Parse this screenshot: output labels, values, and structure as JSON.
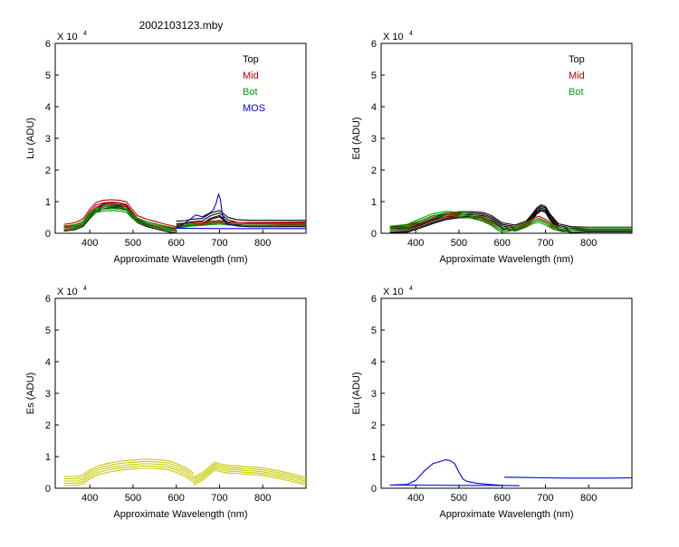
{
  "figure": {
    "title": "2002103123.mby"
  },
  "chart_data": [
    {
      "type": "line",
      "xlabel": "Approximate Wavelength (nm)",
      "ylabel": "Lu (ADU)",
      "multiplier": "X 10",
      "multiplier_exp": "4",
      "xlim": [
        320,
        900
      ],
      "ylim": [
        0,
        60000
      ],
      "xticks": [
        400,
        500,
        600,
        700,
        800
      ],
      "yticks": [
        0,
        10000,
        20000,
        30000,
        40000,
        50000,
        60000
      ],
      "ytick_labels": [
        "0",
        "1",
        "2",
        "3",
        "4",
        "5",
        "6"
      ],
      "legend": [
        "Top",
        "Mid",
        "Bot",
        "MOS"
      ],
      "legend_placement": "top-right",
      "series": [
        {
          "name": "Top",
          "color": "#000000",
          "groups": [
            {
              "offsets": [
                0,
                500,
                -500,
                1000
              ],
              "x": [
                340,
                365,
                385,
                400,
                415,
                430,
                450,
                470,
                485,
                495,
                510,
                530,
                550,
                570,
                590,
                600
              ],
              "y": [
                1200,
                1600,
                2700,
                5200,
                7200,
                8200,
                8600,
                8500,
                7800,
                6000,
                3800,
                2700,
                2000,
                1300,
                700,
                500
              ]
            },
            {
              "offsets": [
                0,
                800,
                1600,
                -400
              ],
              "x": [
                600,
                620,
                640,
                660,
                680,
                700,
                720,
                740,
                770,
                800,
                850,
                900
              ],
              "y": [
                2200,
                2400,
                2900,
                3100,
                4800,
                5600,
                3400,
                2700,
                2500,
                2500,
                2500,
                2500
              ]
            }
          ]
        },
        {
          "name": "Mid",
          "color": "#c00000",
          "groups": [
            {
              "offsets": [
                0,
                800,
                1600
              ],
              "x": [
                340,
                365,
                385,
                400,
                415,
                430,
                450,
                470,
                485,
                495,
                510,
                530,
                550,
                570,
                590,
                600
              ],
              "y": [
                1200,
                1700,
                3000,
                6000,
                8200,
                8800,
                9000,
                8800,
                8300,
                6500,
                4000,
                2900,
                2200,
                1400,
                800,
                500
              ]
            },
            {
              "offsets": [
                0,
                400,
                800
              ],
              "x": [
                600,
                620,
                640,
                660,
                680,
                700,
                720,
                740,
                770,
                800,
                850,
                900
              ],
              "y": [
                2000,
                2200,
                2500,
                2700,
                3000,
                3300,
                2800,
                2600,
                2600,
                2600,
                2700,
                2800
              ]
            }
          ]
        },
        {
          "name": "Bot",
          "color": "#00a000",
          "groups": [
            {
              "offsets": [
                0,
                600,
                1200
              ],
              "x": [
                340,
                365,
                385,
                400,
                415,
                430,
                450,
                470,
                485,
                495,
                510,
                530,
                550,
                570,
                590,
                600
              ],
              "y": [
                1100,
                1500,
                2600,
                5000,
                6600,
                7000,
                7200,
                7000,
                6600,
                5200,
                3400,
                2500,
                1900,
                1200,
                700,
                500
              ]
            },
            {
              "offsets": [
                0,
                500
              ],
              "x": [
                600,
                620,
                640,
                660,
                680,
                700,
                720,
                740,
                770,
                800,
                850,
                900
              ],
              "y": [
                2000,
                2100,
                2300,
                2500,
                2700,
                2900,
                2600,
                2500,
                2500,
                2500,
                2500,
                2500
              ]
            }
          ]
        },
        {
          "name": "MOS",
          "color": "#0000dd",
          "groups": [
            {
              "offsets": [
                0
              ],
              "x": [
                600,
                615,
                630,
                645,
                660,
                675,
                685,
                692,
                698,
                702,
                706,
                712,
                720,
                735,
                750
              ],
              "y": [
                2000,
                2800,
                4200,
                5800,
                5200,
                6200,
                7200,
                9500,
                12300,
                10800,
                6500,
                3600,
                2800,
                2500,
                2500
              ]
            },
            {
              "offsets": [
                0
              ],
              "x": [
                600,
                700,
                800,
                900
              ],
              "y": [
                1600,
                1500,
                1500,
                1500
              ]
            }
          ]
        }
      ]
    },
    {
      "type": "line",
      "xlabel": "Approximate Wavelength (nm)",
      "ylabel": "Ed  (ADU)",
      "multiplier": "X 10",
      "multiplier_exp": "4",
      "xlim": [
        320,
        900
      ],
      "ylim": [
        0,
        60000
      ],
      "xticks": [
        400,
        500,
        600,
        700,
        800
      ],
      "yticks": [
        0,
        10000,
        20000,
        30000,
        40000,
        50000,
        60000
      ],
      "ytick_labels": [
        "0",
        "1",
        "2",
        "3",
        "4",
        "5",
        "6"
      ],
      "legend": [
        "Top",
        "Mid",
        "Bot"
      ],
      "legend_placement": "top-right",
      "series": [
        {
          "name": "Top",
          "color": "#000000",
          "groups": [
            {
              "offsets": [
                0,
                500,
                -500,
                1000,
                -900
              ],
              "x": [
                340,
                380,
                410,
                440,
                470,
                500,
                530,
                555,
                575,
                600,
                630,
                655,
                670,
                680,
                690,
                700,
                710,
                730,
                760,
                800,
                850,
                900
              ],
              "y": [
                1000,
                1200,
                2500,
                4000,
                5200,
                5800,
                5800,
                5600,
                4600,
                2300,
                1600,
                2800,
                5200,
                7000,
                8000,
                7500,
                5200,
                2000,
                1100,
                900,
                900,
                900
              ]
            }
          ]
        },
        {
          "name": "Mid",
          "color": "#c00000",
          "groups": [
            {
              "offsets": [
                0,
                600,
                1200
              ],
              "x": [
                340,
                380,
                410,
                440,
                470,
                500,
                530,
                555,
                575,
                590,
                600,
                630,
                655,
                670,
                685,
                700,
                720,
                740
              ],
              "y": [
                1000,
                1400,
                2800,
                4300,
                5200,
                5300,
                4800,
                4000,
                2700,
                1000,
                400,
                1000,
                2200,
                3500,
                4200,
                3300,
                1400,
                500
              ]
            }
          ]
        },
        {
          "name": "Bot",
          "color": "#00a000",
          "groups": [
            {
              "offsets": [
                0,
                600,
                1200
              ],
              "x": [
                340,
                380,
                410,
                440,
                470,
                500,
                530,
                555,
                575,
                590,
                600,
                630,
                655,
                670,
                685,
                700,
                720,
                740,
                800,
                900
              ],
              "y": [
                1000,
                1600,
                3400,
                5000,
                5700,
                5400,
                4700,
                3800,
                2500,
                1000,
                400,
                900,
                1900,
                3000,
                3500,
                2600,
                1200,
                500,
                700,
                700
              ]
            }
          ]
        }
      ]
    },
    {
      "type": "line",
      "xlabel": "Approximate Wavelength (nm)",
      "ylabel": "Es  (ADU)",
      "multiplier": "X 10",
      "multiplier_exp": "4",
      "xlim": [
        320,
        900
      ],
      "ylim": [
        0,
        60000
      ],
      "xticks": [
        400,
        500,
        600,
        700,
        800
      ],
      "yticks": [
        0,
        10000,
        20000,
        30000,
        40000,
        50000,
        60000
      ],
      "ytick_labels": [
        "0",
        "1",
        "2",
        "3",
        "4",
        "5",
        "6"
      ],
      "legend": [],
      "series": [
        {
          "name": "",
          "color": "#c8c800",
          "groups": [
            {
              "offsets": [
                0,
                700,
                1400,
                2100,
                2800
              ],
              "x": [
                340,
                370,
                385,
                400,
                420,
                440,
                460,
                480,
                500,
                520,
                540,
                560,
                580,
                600,
                620,
                640
              ],
              "y": [
                900,
                900,
                1500,
                3000,
                4300,
                5000,
                5500,
                5900,
                6100,
                6300,
                6300,
                6200,
                5900,
                5000,
                3800,
                2000
              ]
            },
            {
              "offsets": [
                0,
                600,
                1200,
                1800,
                2400
              ],
              "x": [
                640,
                660,
                680,
                690,
                700,
                720,
                740,
                760,
                780,
                800,
                820,
                840,
                860,
                880,
                900
              ],
              "y": [
                1000,
                2500,
                4700,
                5800,
                5300,
                4800,
                4700,
                4400,
                4300,
                4000,
                3500,
                3000,
                2400,
                1700,
                1000
              ]
            }
          ]
        }
      ]
    },
    {
      "type": "line",
      "xlabel": "Approximate Wavelength (nm)",
      "ylabel": "Eu  (ADU)",
      "multiplier": "X 10",
      "multiplier_exp": "4",
      "xlim": [
        320,
        900
      ],
      "ylim": [
        0,
        60000
      ],
      "xticks": [
        400,
        500,
        600,
        700,
        800
      ],
      "yticks": [
        0,
        10000,
        20000,
        30000,
        40000,
        50000,
        60000
      ],
      "ytick_labels": [
        "0",
        "1",
        "2",
        "3",
        "4",
        "5",
        "6"
      ],
      "legend": [],
      "series": [
        {
          "name": "",
          "color": "#0000dd",
          "groups": [
            {
              "offsets": [
                0
              ],
              "x": [
                340,
                380,
                400,
                420,
                440,
                460,
                470,
                480,
                490,
                500,
                510,
                520,
                540,
                570,
                600
              ],
              "y": [
                1000,
                1200,
                2500,
                5500,
                7800,
                8600,
                9000,
                8700,
                7800,
                5000,
                2800,
                2100,
                1600,
                1200,
                900
              ]
            },
            {
              "offsets": [
                0
              ],
              "x": [
                340,
                400,
                500,
                600,
                640
              ],
              "y": [
                1000,
                1000,
                900,
                900,
                800
              ]
            },
            {
              "offsets": [
                0
              ],
              "x": [
                605,
                650,
                700,
                750,
                800,
                850,
                900
              ],
              "y": [
                3500,
                3400,
                3300,
                3200,
                3200,
                3200,
                3300
              ]
            }
          ]
        }
      ]
    }
  ]
}
